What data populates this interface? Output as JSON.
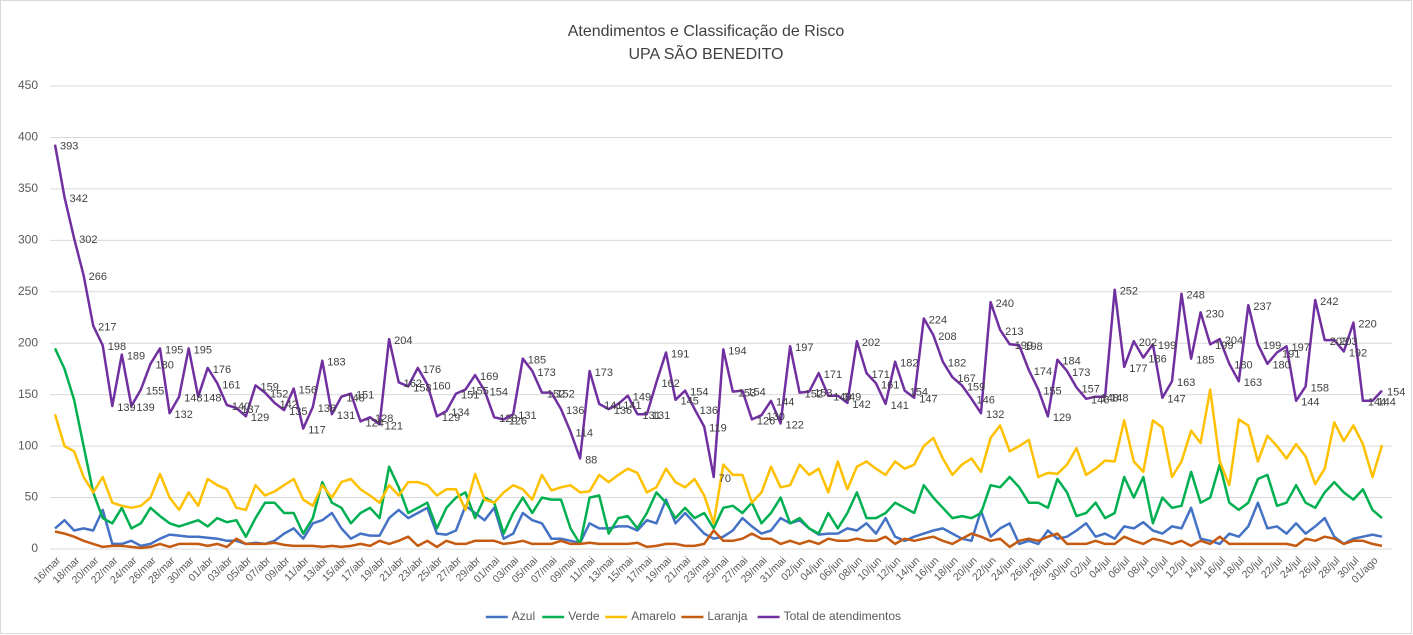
{
  "chart_data": {
    "type": "line",
    "title": "Atendimentos e Classificação de Risco",
    "subtitle": "UPA SÃO BENEDITO",
    "categories": [
      "16/mar",
      null,
      "18/mar",
      null,
      "20/mar",
      null,
      "22/mar",
      null,
      "24/mar",
      null,
      "26/mar",
      null,
      "28/mar",
      null,
      "30/mar",
      null,
      "01/abr",
      null,
      "03/abr",
      null,
      "05/abr",
      null,
      "07/abr",
      null,
      "09/abr",
      null,
      "11/abr",
      null,
      "13/abr",
      null,
      "15/abr",
      null,
      "17/abr",
      null,
      "19/abr",
      null,
      "21/abr",
      null,
      "23/abr",
      null,
      "25/abr",
      null,
      "27/abr",
      null,
      "29/abr",
      null,
      "01/mai",
      null,
      "03/mai",
      null,
      "05/mai",
      null,
      "07/mai",
      null,
      "09/mai",
      null,
      "11/mai",
      null,
      "13/mai",
      null,
      "15/mai",
      null,
      "17/mai",
      null,
      "19/mai",
      null,
      "21/mai",
      null,
      "23/mai",
      null,
      "25/mai",
      null,
      "27/mai",
      null,
      "29/mai",
      null,
      "31/mai",
      null,
      "02/jun",
      null,
      "04/jun",
      null,
      "06/jun",
      null,
      "08/jun",
      null,
      "10/jun",
      null,
      "12/jun",
      null,
      "14/jun",
      null,
      "16/jun",
      null,
      "18/jun",
      null,
      "20/jun",
      null,
      "22/jun",
      null,
      "24/jun",
      null,
      "26/jun",
      null,
      "28/jun",
      null,
      "30/jun",
      null,
      "02/jul",
      null,
      "04/jul",
      null,
      "06/jul",
      null,
      "08/jul",
      null,
      "10/jul",
      null,
      "12/jul",
      null,
      "14/jul",
      null,
      "16/jul",
      null,
      "18/jul",
      null,
      "20/jul",
      null,
      "22/jul",
      null,
      "24/jul",
      null,
      "26/jul",
      null,
      "28/jul",
      null,
      "30/jul",
      null,
      "01/ago",
      null
    ],
    "series": [
      {
        "name": "Azul",
        "color": "#4472c4",
        "values": [
          20,
          28,
          18,
          20,
          18,
          38,
          5,
          5,
          8,
          3,
          5,
          10,
          14,
          13,
          12,
          12,
          11,
          10,
          8,
          8,
          5,
          6,
          5,
          8,
          15,
          20,
          10,
          25,
          28,
          35,
          20,
          10,
          15,
          13,
          13,
          30,
          38,
          30,
          35,
          40,
          15,
          14,
          18,
          42,
          35,
          28,
          40,
          10,
          15,
          35,
          28,
          25,
          10,
          10,
          8,
          6,
          25,
          20,
          20,
          22,
          22,
          18,
          28,
          25,
          48,
          25,
          35,
          25,
          15,
          10,
          12,
          18,
          30,
          22,
          15,
          18,
          30,
          25,
          28,
          20,
          14,
          15,
          15,
          20,
          18,
          25,
          15,
          30,
          12,
          8,
          12,
          15,
          18,
          20,
          15,
          10,
          8,
          37,
          12,
          20,
          25,
          5,
          8,
          5,
          18,
          10,
          12,
          18,
          25,
          12,
          15,
          10,
          22,
          20,
          26,
          18,
          15,
          22,
          20,
          40,
          10,
          8,
          5,
          15,
          12,
          22,
          45,
          20,
          22,
          15,
          25,
          15,
          22,
          30,
          12,
          5,
          10,
          12,
          14,
          12
        ]
      },
      {
        "name": "Verde",
        "color": "#00b050",
        "values": [
          195,
          175,
          145,
          100,
          55,
          30,
          25,
          40,
          20,
          25,
          40,
          32,
          25,
          22,
          25,
          28,
          22,
          30,
          26,
          28,
          12,
          30,
          45,
          45,
          35,
          35,
          15,
          30,
          65,
          45,
          40,
          25,
          35,
          40,
          30,
          80,
          60,
          35,
          40,
          45,
          20,
          40,
          50,
          55,
          30,
          50,
          45,
          15,
          35,
          50,
          35,
          50,
          48,
          48,
          20,
          5,
          50,
          52,
          15,
          30,
          32,
          20,
          35,
          55,
          45,
          30,
          40,
          30,
          35,
          20,
          40,
          42,
          35,
          45,
          25,
          35,
          50,
          25,
          30,
          20,
          15,
          35,
          20,
          35,
          55,
          30,
          30,
          35,
          45,
          40,
          35,
          62,
          50,
          40,
          30,
          32,
          30,
          35,
          62,
          60,
          70,
          60,
          45,
          45,
          40,
          68,
          55,
          32,
          35,
          45,
          30,
          35,
          70,
          50,
          70,
          25,
          50,
          40,
          42,
          75,
          45,
          50,
          82,
          45,
          38,
          45,
          68,
          72,
          42,
          45,
          62,
          45,
          40,
          55,
          65,
          55,
          48,
          58,
          38,
          30
        ]
      },
      {
        "name": "Amarelo",
        "color": "#ffc000",
        "values": [
          131,
          100,
          95,
          70,
          55,
          70,
          45,
          42,
          40,
          42,
          50,
          73,
          50,
          38,
          55,
          42,
          68,
          62,
          58,
          40,
          38,
          62,
          52,
          56,
          62,
          68,
          48,
          42,
          62,
          50,
          65,
          68,
          58,
          52,
          45,
          62,
          52,
          65,
          65,
          62,
          52,
          58,
          58,
          38,
          73,
          48,
          45,
          55,
          62,
          58,
          48,
          72,
          57,
          60,
          62,
          55,
          56,
          72,
          65,
          72,
          78,
          74,
          55,
          60,
          78,
          65,
          60,
          68,
          52,
          25,
          82,
          72,
          72,
          45,
          55,
          80,
          60,
          62,
          82,
          72,
          78,
          55,
          85,
          58,
          80,
          85,
          78,
          72,
          85,
          78,
          82,
          100,
          108,
          88,
          72,
          82,
          88,
          75,
          108,
          120,
          95,
          100,
          106,
          70,
          74,
          73,
          82,
          98,
          72,
          78,
          86,
          85,
          125,
          85,
          75,
          125,
          118,
          70,
          85,
          115,
          103,
          155,
          85,
          62,
          126,
          120,
          85,
          110,
          100,
          88,
          102,
          90,
          63,
          78,
          123,
          105,
          120,
          102,
          70,
          101
        ]
      },
      {
        "name": "Laranja",
        "color": "#c55a11",
        "values": [
          17,
          15,
          12,
          8,
          5,
          2,
          3,
          3,
          2,
          1,
          2,
          5,
          2,
          5,
          5,
          5,
          3,
          5,
          2,
          10,
          5,
          5,
          5,
          6,
          4,
          3,
          3,
          3,
          2,
          3,
          2,
          3,
          5,
          3,
          8,
          5,
          8,
          12,
          3,
          8,
          2,
          8,
          5,
          5,
          8,
          8,
          8,
          5,
          6,
          8,
          5,
          5,
          5,
          8,
          5,
          5,
          6,
          5,
          5,
          5,
          5,
          6,
          2,
          3,
          5,
          5,
          3,
          3,
          5,
          18,
          8,
          8,
          10,
          15,
          10,
          10,
          5,
          8,
          5,
          8,
          5,
          10,
          8,
          8,
          10,
          8,
          8,
          12,
          5,
          10,
          8,
          10,
          12,
          8,
          5,
          10,
          15,
          12,
          8,
          10,
          2,
          8,
          10,
          8,
          12,
          15,
          5,
          5,
          5,
          8,
          5,
          5,
          12,
          8,
          5,
          10,
          8,
          5,
          8,
          3,
          8,
          5,
          12,
          5,
          5,
          5,
          5,
          5,
          5,
          5,
          3,
          10,
          8,
          12,
          10,
          5,
          8,
          8,
          5,
          3
        ]
      },
      {
        "name": "Total de atendimentos",
        "color": "#7030a0",
        "data_labels": true,
        "values": [
          393,
          342,
          302,
          266,
          217,
          198,
          139,
          189,
          139,
          155,
          180,
          195,
          132,
          148,
          195,
          148,
          176,
          161,
          140,
          137,
          129,
          159,
          152,
          142,
          135,
          156,
          117,
          138,
          183,
          131,
          148,
          151,
          124,
          128,
          121,
          204,
          162,
          158,
          176,
          160,
          129,
          134,
          151,
          155,
          169,
          154,
          128,
          126,
          131,
          185,
          173,
          152,
          152,
          136,
          114,
          88,
          173,
          141,
          136,
          141,
          149,
          131,
          131,
          162,
          191,
          145,
          154,
          136,
          119,
          70,
          194,
          153,
          154,
          126,
          130,
          144,
          122,
          197,
          152,
          153,
          171,
          149,
          149,
          142,
          202,
          171,
          161,
          141,
          182,
          154,
          147,
          224,
          208,
          182,
          167,
          159,
          146,
          132,
          240,
          213,
          199,
          198,
          174,
          155,
          129,
          184,
          173,
          157,
          146,
          148,
          148,
          252,
          177,
          202,
          186,
          199,
          147,
          163,
          248,
          185,
          230,
          199,
          204,
          180,
          163,
          237,
          199,
          180,
          191,
          197,
          144,
          158,
          242,
          203,
          203,
          192,
          220,
          144,
          144,
          154
        ]
      }
    ],
    "ylim": [
      0,
      450
    ],
    "yticks": [
      0,
      50,
      100,
      150,
      200,
      250,
      300,
      350,
      400,
      450
    ],
    "grid": true,
    "legend": "bottom"
  }
}
